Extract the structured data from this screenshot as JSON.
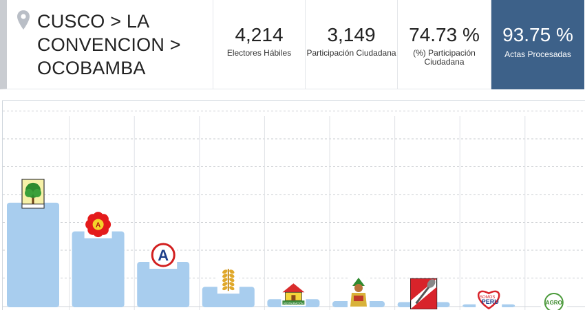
{
  "header": {
    "location_lines": [
      "CUSCO > LA",
      "CONVENCION >",
      "OCOBAMBA"
    ],
    "stats": [
      {
        "value": "4,214",
        "label_lines": [
          "Electores Hábiles"
        ]
      },
      {
        "value": "3,149",
        "label_lines": [
          "Participación Ciudadana"
        ]
      },
      {
        "value": "74.73 %",
        "label_lines": [
          "(%) Participación",
          "Ciudadana"
        ]
      },
      {
        "value": "93.75 %",
        "label_lines": [
          "Actas Procesadas"
        ]
      }
    ]
  },
  "colors": {
    "bar": "#a8cdee",
    "highlight": "#3d6189",
    "grid": "#c9ccd0"
  },
  "chart_data": {
    "type": "bar",
    "ylim": [
      0,
      100
    ],
    "grid": true,
    "categories": [
      {
        "logo": "tree-logo",
        "value": 54
      },
      {
        "logo": "flower-logo",
        "value": 39
      },
      {
        "logo": "letter-a-logo",
        "value": 23
      },
      {
        "logo": "wheat-logo",
        "value": 10
      },
      {
        "logo": "house-logo",
        "value": 3.5
      },
      {
        "logo": "inca-figure-logo",
        "value": 2.5
      },
      {
        "logo": "shovel-logo",
        "value": 2
      },
      {
        "logo": "heart-logo",
        "value": 0.8
      },
      {
        "logo": "agro-logo",
        "value": 0
      }
    ],
    "logo_texts": {
      "flower": "A",
      "letter-a": "A",
      "house": "RESTAURACIÓN",
      "heart": [
        "SOMOS",
        "PERU"
      ],
      "agro": "AGRO"
    }
  }
}
